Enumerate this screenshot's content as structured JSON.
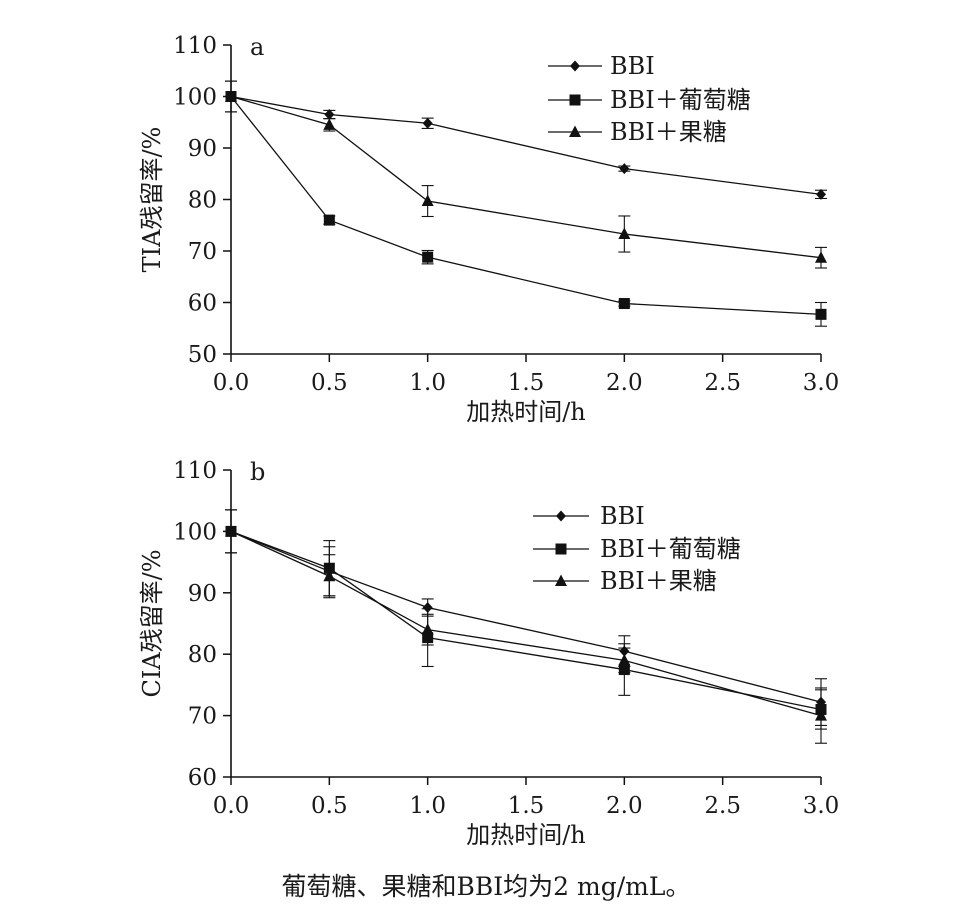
{
  "footnote": "葡萄糖、果糖和BBI均为2 mg/mL。",
  "chart_data": [
    {
      "type": "line",
      "panel_label": "a",
      "xlabel": "加热时间/h",
      "ylabel": "TIA残留率/%",
      "xlim": [
        0.0,
        3.0
      ],
      "ylim": [
        50,
        110
      ],
      "xticks": [
        "0.0",
        "0.5",
        "1.0",
        "1.5",
        "2.0",
        "2.5",
        "3.0"
      ],
      "yticks": [
        "50",
        "60",
        "70",
        "80",
        "90",
        "100",
        "110"
      ],
      "legend_position": "top-right",
      "grid": false,
      "x": [
        0.0,
        0.5,
        1.0,
        2.0,
        3.0
      ],
      "series": [
        {
          "name": "BBI",
          "marker": "diamond",
          "values": [
            100,
            96.5,
            94.8,
            86.0,
            81.0
          ],
          "errors": [
            3.0,
            0.8,
            1.0,
            0.5,
            0.8
          ]
        },
        {
          "name": "BBI＋葡萄糖",
          "marker": "square",
          "values": [
            100,
            76.0,
            68.8,
            59.8,
            57.7
          ],
          "errors": [
            3.0,
            0.8,
            1.3,
            0.5,
            2.3
          ]
        },
        {
          "name": "BBI＋果糖",
          "marker": "triangle",
          "values": [
            100,
            94.5,
            79.7,
            73.3,
            68.7
          ],
          "errors": [
            3.0,
            1.2,
            3.0,
            3.5,
            2.0
          ]
        }
      ]
    },
    {
      "type": "line",
      "panel_label": "b",
      "xlabel": "加热时间/h",
      "ylabel": "CIA残留率/%",
      "xlim": [
        0.0,
        3.0
      ],
      "ylim": [
        60,
        110
      ],
      "xticks": [
        "0.0",
        "0.5",
        "1.0",
        "1.5",
        "2.0",
        "2.5",
        "3.0"
      ],
      "yticks": [
        "60",
        "70",
        "80",
        "90",
        "100",
        "110"
      ],
      "legend_position": "top-right",
      "grid": false,
      "x": [
        0.0,
        0.5,
        1.0,
        2.0,
        3.0
      ],
      "series": [
        {
          "name": "BBI",
          "marker": "diamond",
          "values": [
            100,
            93.5,
            87.6,
            80.5,
            72.2
          ],
          "errors": [
            3.5,
            4.0,
            1.4,
            2.5,
            3.8
          ]
        },
        {
          "name": "BBI＋葡萄糖",
          "marker": "square",
          "values": [
            100,
            94.0,
            82.7,
            77.5,
            71.0
          ],
          "errors": [
            3.5,
            4.5,
            4.7,
            4.2,
            3.2
          ]
        },
        {
          "name": "BBI＋果糖",
          "marker": "triangle",
          "values": [
            100,
            92.7,
            84.0,
            79.0,
            70.0
          ],
          "errors": [
            3.5,
            3.5,
            2.5,
            2.0,
            4.5
          ]
        }
      ]
    }
  ]
}
